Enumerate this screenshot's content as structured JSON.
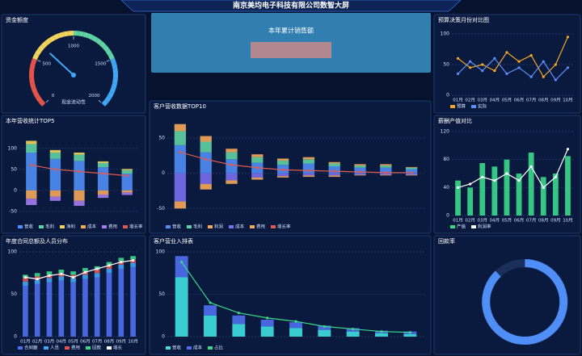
{
  "header": {
    "title": "南京美均电子科技有限公司数智大屏"
  },
  "summary": {
    "title": "本年累计销售额"
  },
  "chart_data": [
    {
      "type": "gauge",
      "title": "资金额度",
      "label": "现金流动性",
      "value": 650,
      "ylim": [
        0,
        2000
      ],
      "yticks": [
        0,
        500,
        1000,
        1500,
        2000
      ]
    },
    {
      "type": "line",
      "title": "预算决策月份对比图",
      "categories": [
        "01月",
        "02月",
        "03月",
        "04月",
        "05月",
        "06月",
        "07月",
        "08月",
        "09月",
        "10月"
      ],
      "series": [
        {
          "name": "预算",
          "color": "#f5a623",
          "values": [
            60,
            45,
            50,
            40,
            70,
            55,
            65,
            30,
            50,
            95
          ]
        },
        {
          "name": "实际",
          "color": "#5b8ff9",
          "values": [
            35,
            55,
            40,
            60,
            35,
            45,
            30,
            55,
            25,
            45
          ]
        }
      ],
      "ylim": [
        0,
        100
      ],
      "yticks": [
        0,
        50,
        100
      ]
    },
    {
      "type": "bar",
      "title": "本年营收统计TOP5",
      "categories": [
        null,
        null,
        null,
        null,
        null
      ],
      "series": [
        {
          "name": "营收",
          "color": "#4f8ef7",
          "values": [
            90,
            75,
            70,
            55,
            40
          ]
        },
        {
          "name": "毛利",
          "color": "#5fd3a3",
          "values": [
            20,
            15,
            15,
            10,
            8
          ]
        },
        {
          "name": "净利",
          "color": "#f2d45c",
          "values": [
            8,
            6,
            5,
            4,
            3
          ]
        },
        {
          "name": "成本",
          "color": "#f6a85a",
          "values": [
            -20,
            -15,
            -25,
            -10,
            -5
          ]
        },
        {
          "name": "费用",
          "color": "#a47cf0",
          "values": [
            -15,
            -10,
            -12,
            -8,
            -6
          ]
        },
        {
          "name": "增长率",
          "color": "#e05a4f",
          "type": "line",
          "values": [
            60,
            50,
            45,
            40,
            35
          ]
        }
      ],
      "ylim": [
        -60,
        140
      ],
      "yticks": [
        -50,
        0,
        50,
        100
      ]
    },
    {
      "type": "bar",
      "title": "客户营收数据TOP10",
      "categories": [
        null,
        null,
        null,
        null,
        null,
        null,
        null,
        null,
        null,
        null
      ],
      "series": [
        {
          "name": "营收",
          "color": "#4f8ef7",
          "values": [
            40,
            30,
            20,
            15,
            12,
            14,
            10,
            8,
            8,
            6
          ]
        },
        {
          "name": "毛利",
          "color": "#5fd3a3",
          "values": [
            20,
            15,
            10,
            8,
            6,
            6,
            4,
            3,
            3,
            2
          ]
        },
        {
          "name": "利润",
          "color": "#f6a85a",
          "values": [
            10,
            8,
            5,
            4,
            3,
            3,
            2,
            2,
            2,
            1
          ]
        },
        {
          "name": "成本",
          "color": "#7a6ff0",
          "values": [
            -40,
            -15,
            -10,
            -6,
            -4,
            -3,
            -3,
            -2,
            -2,
            -2
          ]
        },
        {
          "name": "费用",
          "color": "#f6a85a",
          "values": [
            -10,
            -8,
            -5,
            -3,
            -2,
            -2,
            -2,
            -1,
            -1,
            -1
          ]
        },
        {
          "name": "增长率",
          "color": "#e05a4f",
          "type": "line",
          "values": [
            30,
            20,
            12,
            8,
            5,
            4,
            3,
            2,
            1,
            1
          ]
        }
      ],
      "ylim": [
        -60,
        80
      ],
      "yticks": [
        -50,
        0,
        50
      ]
    },
    {
      "type": "bar",
      "title": "薪酬产值对比",
      "categories": [
        "01月",
        "02月",
        "03月",
        "04月",
        "05月",
        "06月",
        "07月",
        "08月",
        "09月",
        "10月"
      ],
      "series": [
        {
          "name": "产值",
          "color": "#39d98a",
          "values": [
            50,
            40,
            75,
            70,
            80,
            60,
            90,
            55,
            60,
            85
          ]
        },
        {
          "name": "利润率",
          "color": "#ffffff",
          "type": "line",
          "values": [
            40,
            45,
            55,
            50,
            60,
            50,
            70,
            40,
            55,
            95
          ]
        }
      ],
      "ylim": [
        0,
        120
      ],
      "yticks": [
        0,
        40,
        80,
        120
      ]
    },
    {
      "type": "bar",
      "title": "年度合同总额及人员分布",
      "categories": [
        "01月",
        "02月",
        "03月",
        "04月",
        "05月",
        "06月",
        "07月",
        "08月",
        "09月",
        "10月"
      ],
      "series": [
        {
          "name": "合同额",
          "color": "#4f6ff0",
          "values": [
            60,
            62,
            64,
            66,
            64,
            68,
            70,
            75,
            80,
            82
          ]
        },
        {
          "name": "人员",
          "color": "#3fa7f5",
          "values": [
            5,
            5,
            5,
            5,
            5,
            5,
            5,
            5,
            5,
            5
          ]
        },
        {
          "name": "费用",
          "color": "#e5534b",
          "values": [
            4,
            4,
            4,
            4,
            4,
            4,
            4,
            4,
            4,
            4
          ]
        },
        {
          "name": "回款",
          "color": "#39d98a",
          "values": [
            4,
            4,
            4,
            4,
            4,
            4,
            4,
            4,
            4,
            4
          ]
        },
        {
          "name": "增长",
          "color": "#ffffff",
          "type": "line",
          "values": [
            70,
            68,
            72,
            74,
            70,
            76,
            80,
            84,
            88,
            90
          ]
        }
      ],
      "ylim": [
        0,
        100
      ],
      "yticks": [
        0,
        50,
        100
      ]
    },
    {
      "type": "bar",
      "title": "客户营业入排表",
      "categories": [
        null,
        null,
        null,
        null,
        null,
        null,
        null,
        null,
        null
      ],
      "series": [
        {
          "name": "营收",
          "color": "#3ee0e0",
          "values": [
            70,
            25,
            15,
            12,
            10,
            8,
            6,
            4,
            3
          ]
        },
        {
          "name": "成本",
          "color": "#4f6ff0",
          "values": [
            25,
            12,
            10,
            8,
            7,
            5,
            4,
            3,
            3
          ]
        },
        {
          "name": "占比",
          "color": "#39d98a",
          "type": "line",
          "values": [
            88,
            40,
            28,
            22,
            18,
            12,
            9,
            6,
            5
          ]
        }
      ],
      "ylim": [
        0,
        100
      ],
      "yticks": [
        0,
        50,
        100
      ]
    },
    {
      "type": "pie",
      "title": "回款率",
      "values": [
        88,
        12
      ],
      "colors": [
        "#4f8ef7",
        "#1b2f5c"
      ]
    }
  ]
}
